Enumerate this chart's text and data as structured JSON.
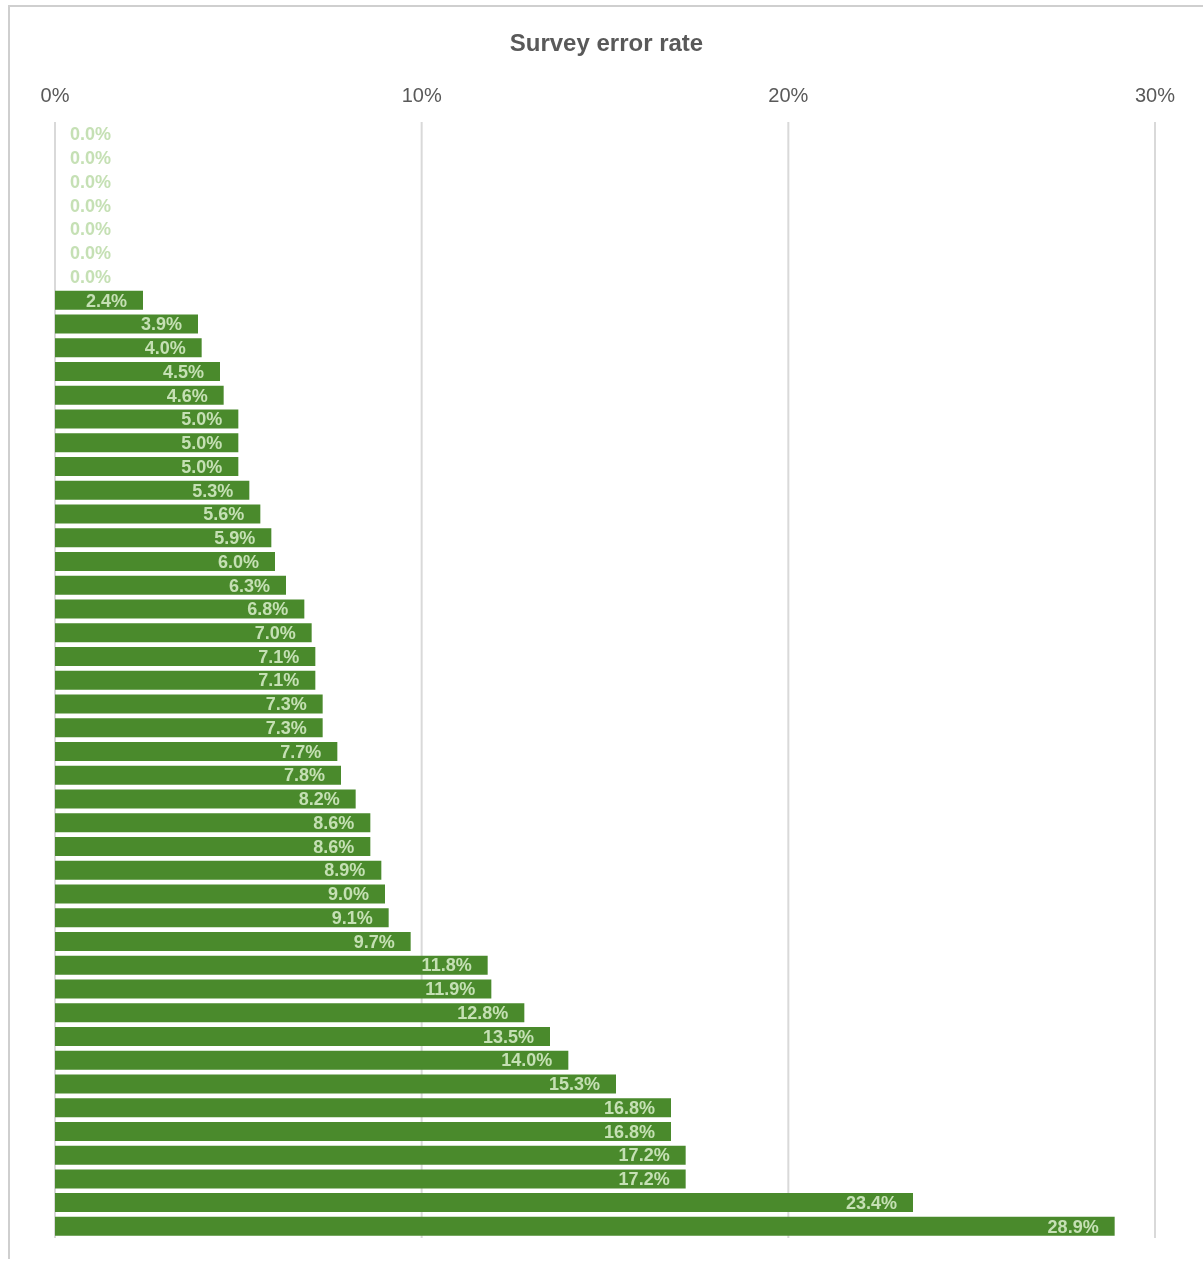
{
  "chart_data": {
    "type": "bar",
    "title": "Survey error rate",
    "orientation": "horizontal",
    "categories": [
      null,
      null,
      null,
      null,
      null,
      null,
      null,
      null,
      null,
      null,
      null,
      null,
      null,
      null,
      null,
      null,
      null,
      null,
      null,
      null,
      null,
      null,
      null,
      null,
      null,
      null,
      null,
      null,
      null,
      null,
      null,
      null,
      null,
      null,
      null,
      null,
      null,
      null,
      null,
      null,
      null,
      null,
      null,
      null,
      null,
      null,
      null
    ],
    "values": [
      0,
      0,
      0,
      0,
      0,
      0,
      0,
      2.4,
      3.9,
      4.0,
      4.5,
      4.6,
      5.0,
      5.0,
      5.0,
      5.3,
      5.6,
      5.9,
      6.0,
      6.3,
      6.8,
      7.0,
      7.1,
      7.1,
      7.3,
      7.3,
      7.7,
      7.8,
      8.2,
      8.6,
      8.6,
      8.9,
      9.0,
      9.1,
      9.7,
      11.8,
      11.9,
      12.8,
      13.5,
      14.0,
      15.3,
      16.8,
      16.8,
      17.2,
      17.2,
      23.4,
      28.9
    ],
    "value_labels": [
      "0.0%",
      "0.0%",
      "0.0%",
      "0.0%",
      "0.0%",
      "0.0%",
      "0.0%",
      "2.4%",
      "3.9%",
      "4.0%",
      "4.5%",
      "4.6%",
      "5.0%",
      "5.0%",
      "5.0%",
      "5.3%",
      "5.6%",
      "5.9%",
      "6.0%",
      "6.3%",
      "6.8%",
      "7.0%",
      "7.1%",
      "7.1%",
      "7.3%",
      "7.3%",
      "7.7%",
      "7.8%",
      "8.2%",
      "8.6%",
      "8.6%",
      "8.9%",
      "9.0%",
      "9.1%",
      "9.7%",
      "11.8%",
      "11.9%",
      "12.8%",
      "13.5%",
      "14.0%",
      "15.3%",
      "16.8%",
      "16.8%",
      "17.2%",
      "17.2%",
      "23.4%",
      "28.9%"
    ],
    "color": "#4a8a2c",
    "xlim": [
      0,
      30
    ],
    "xticks": [
      {
        "value": 0,
        "label": "0%"
      },
      {
        "value": 10,
        "label": "10%"
      },
      {
        "value": 20,
        "label": "20%"
      },
      {
        "value": 30,
        "label": "30%"
      }
    ],
    "grid": "x"
  }
}
